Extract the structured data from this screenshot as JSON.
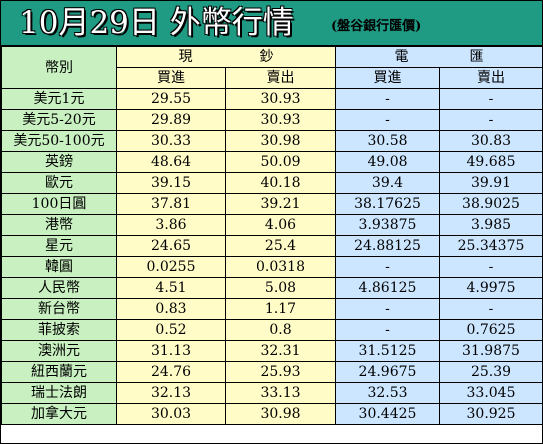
{
  "title": "10月29日 外幣行情",
  "source": "(盤谷銀行匯價)",
  "header": {
    "currency_col": "幣別",
    "cash_chars": [
      "現",
      "鈔"
    ],
    "wire_chars": [
      "電",
      "匯"
    ],
    "buy": "買進",
    "sell": "賣出"
  },
  "colors": {
    "title_bg": "#1f9a83",
    "name_bg": "#c8f0c0",
    "cash_bg": "#fffcc8",
    "wire_bg": "#cde6ff"
  },
  "rows": [
    {
      "name": "美元1元",
      "cash_buy": "29.55",
      "cash_sell": "30.93",
      "wire_buy": "-",
      "wire_sell": "-"
    },
    {
      "name": "美元5-20元",
      "cash_buy": "29.89",
      "cash_sell": "30.93",
      "wire_buy": "-",
      "wire_sell": "-"
    },
    {
      "name": "美元50-100元",
      "cash_buy": "30.33",
      "cash_sell": "30.98",
      "wire_buy": "30.58",
      "wire_sell": "30.83"
    },
    {
      "name": "英鎊",
      "cash_buy": "48.64",
      "cash_sell": "50.09",
      "wire_buy": "49.08",
      "wire_sell": "49.685"
    },
    {
      "name": "歐元",
      "cash_buy": "39.15",
      "cash_sell": "40.18",
      "wire_buy": "39.4",
      "wire_sell": "39.91"
    },
    {
      "name": "100日圓",
      "cash_buy": "37.81",
      "cash_sell": "39.21",
      "wire_buy": "38.17625",
      "wire_sell": "38.9025"
    },
    {
      "name": "港幣",
      "cash_buy": "3.86",
      "cash_sell": "4.06",
      "wire_buy": "3.93875",
      "wire_sell": "3.985"
    },
    {
      "name": "星元",
      "cash_buy": "24.65",
      "cash_sell": "25.4",
      "wire_buy": "24.88125",
      "wire_sell": "25.34375"
    },
    {
      "name": "韓圓",
      "cash_buy": "0.0255",
      "cash_sell": "0.0318",
      "wire_buy": "-",
      "wire_sell": "-"
    },
    {
      "name": "人民幣",
      "cash_buy": "4.51",
      "cash_sell": "5.08",
      "wire_buy": "4.86125",
      "wire_sell": "4.9975"
    },
    {
      "name": "新台幣",
      "cash_buy": "0.83",
      "cash_sell": "1.17",
      "wire_buy": "-",
      "wire_sell": "-"
    },
    {
      "name": "菲披索",
      "cash_buy": "0.52",
      "cash_sell": "0.8",
      "wire_buy": "-",
      "wire_sell": "0.7625"
    },
    {
      "name": "澳洲元",
      "cash_buy": "31.13",
      "cash_sell": "32.31",
      "wire_buy": "31.5125",
      "wire_sell": "31.9875"
    },
    {
      "name": "紐西蘭元",
      "cash_buy": "24.76",
      "cash_sell": "25.93",
      "wire_buy": "24.9675",
      "wire_sell": "25.39"
    },
    {
      "name": "瑞士法朗",
      "cash_buy": "32.13",
      "cash_sell": "33.13",
      "wire_buy": "32.53",
      "wire_sell": "33.045"
    },
    {
      "name": "加拿大元",
      "cash_buy": "30.03",
      "cash_sell": "30.98",
      "wire_buy": "30.4425",
      "wire_sell": "30.925"
    }
  ]
}
